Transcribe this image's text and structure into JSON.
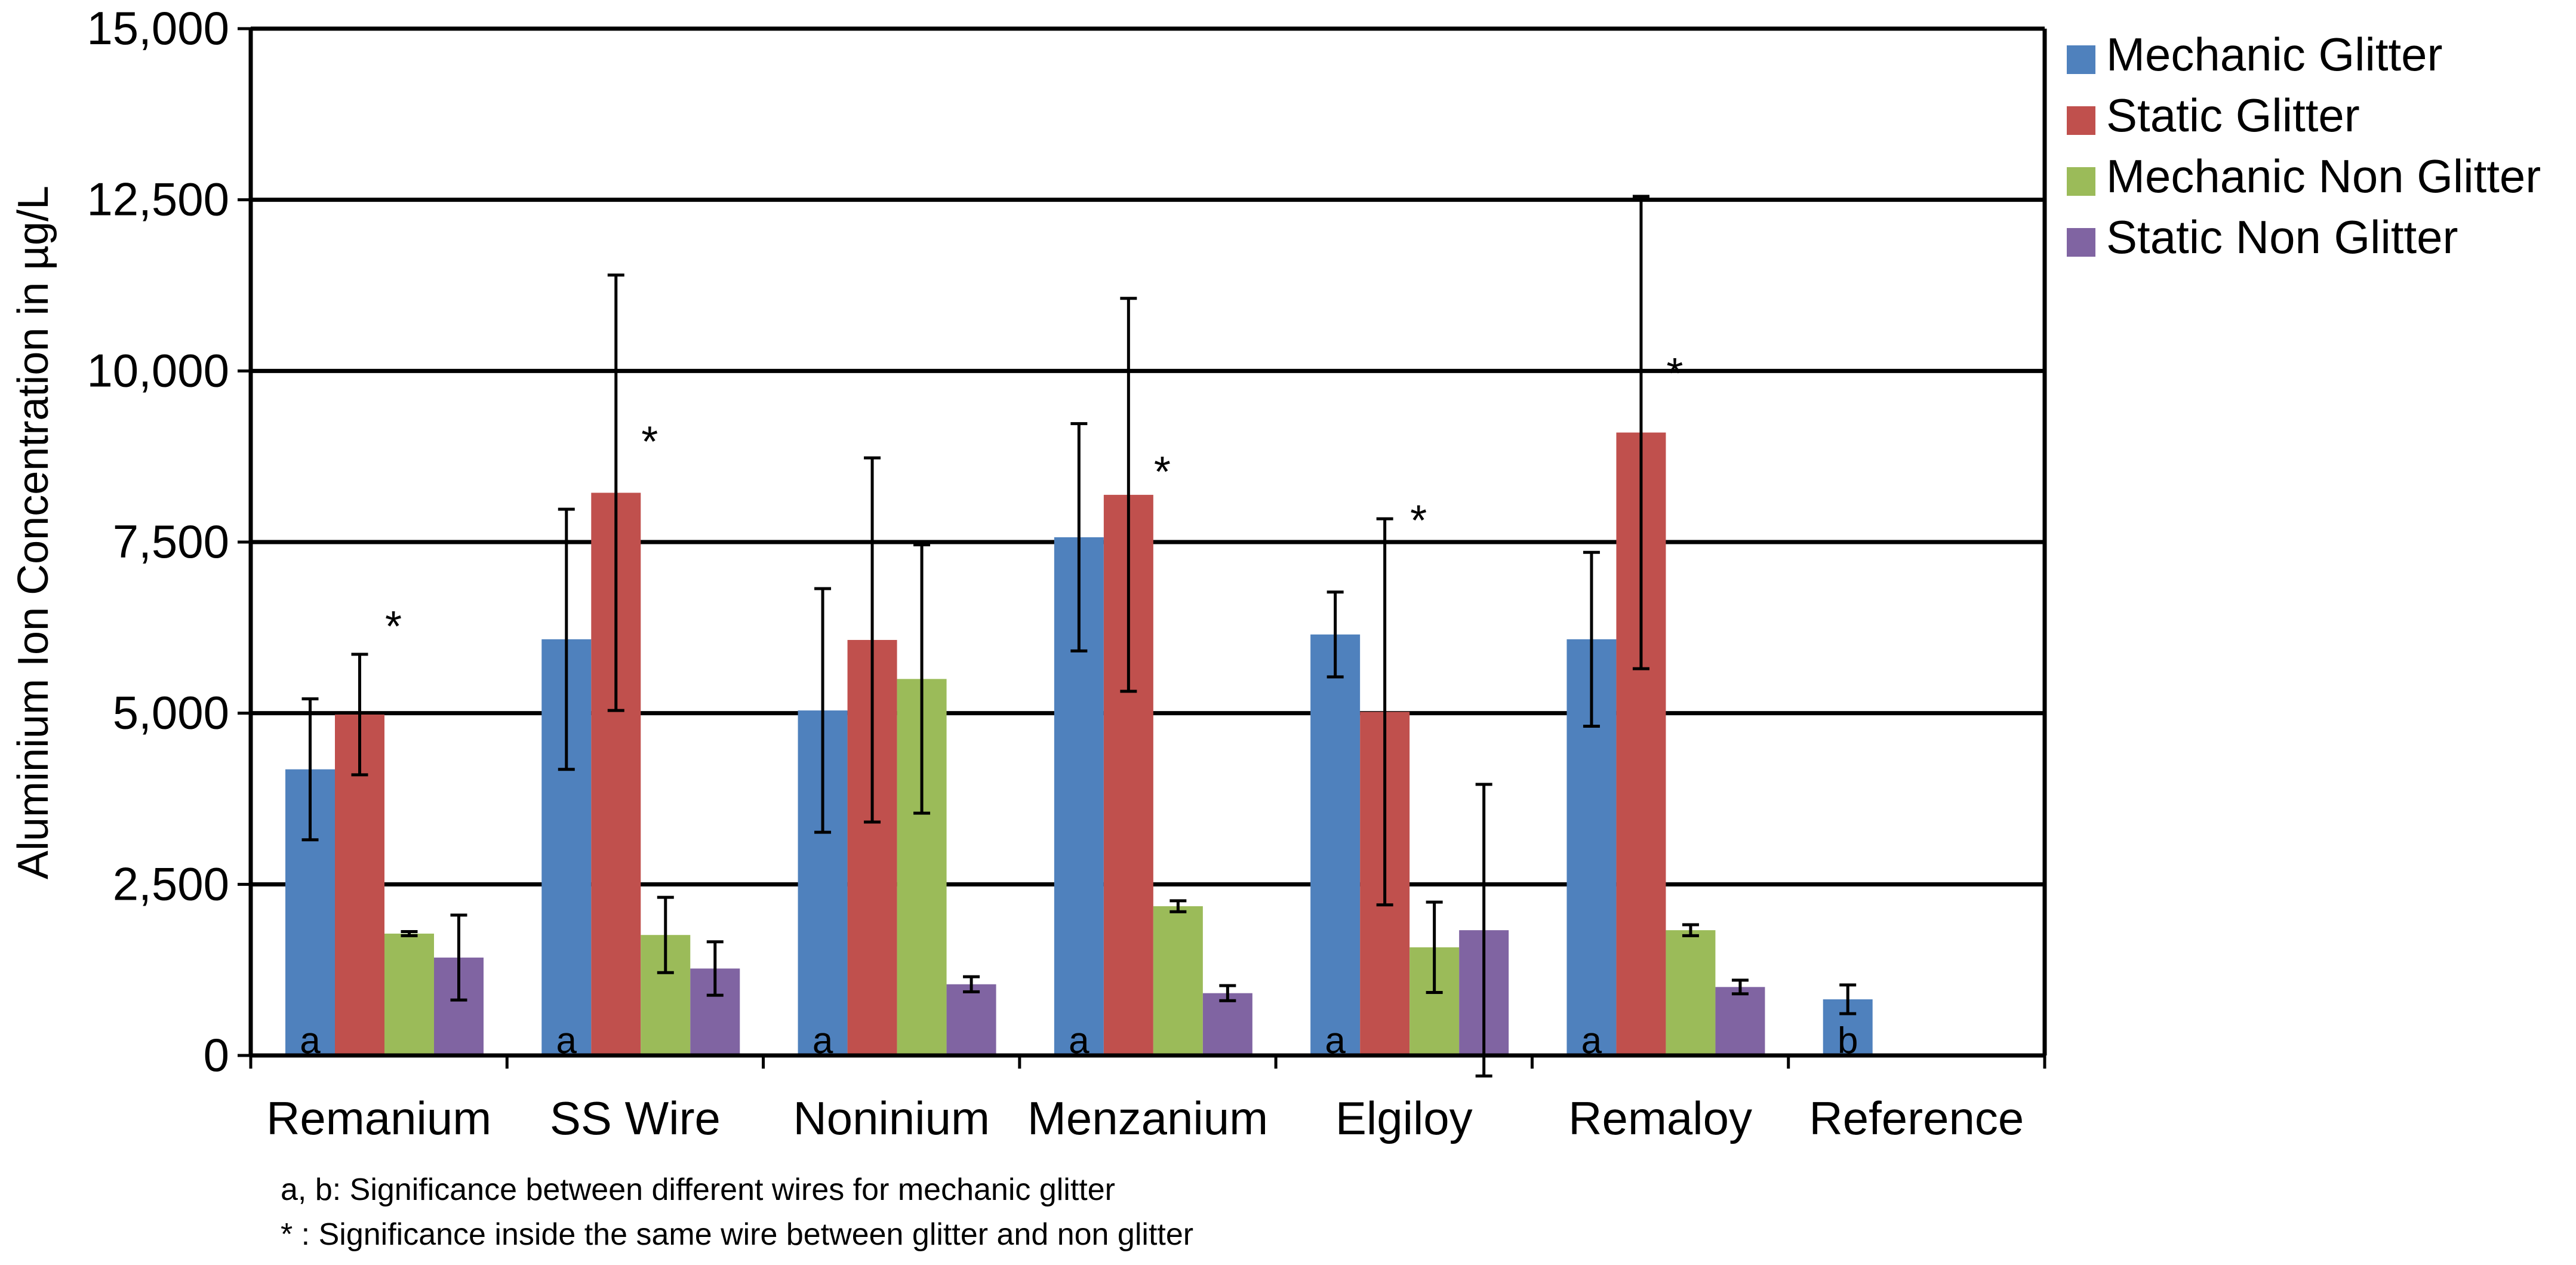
{
  "chart_data": {
    "type": "bar",
    "title": "",
    "xlabel": "",
    "ylabel": "Aluminium Ion Concentration in µg/L",
    "ylim": [
      0,
      15000
    ],
    "ytick_labels": [
      "0",
      "2,500",
      "5,000",
      "7,500",
      "10,000",
      "12,500",
      "15,000"
    ],
    "ytick_values": [
      0,
      2500,
      5000,
      7500,
      10000,
      12500,
      15000
    ],
    "grid": true,
    "legend_position": "top-right",
    "categories": [
      "Remanium",
      "SS Wire",
      "Noninium",
      "Menzanium",
      "Elgiloy",
      "Remaloy",
      "Reference"
    ],
    "series": [
      {
        "name": "Mechanic Glitter",
        "color": "#4F81BD",
        "values": [
          4180,
          6080,
          5040,
          7570,
          6150,
          6080,
          820
        ],
        "errors": [
          1030,
          1900,
          1780,
          1660,
          620,
          1270,
          210
        ]
      },
      {
        "name": "Static Glitter",
        "color": "#C0504D",
        "values": [
          4980,
          8220,
          6070,
          8190,
          5020,
          9100,
          null
        ],
        "errors": [
          880,
          3180,
          2660,
          2870,
          2820,
          3450,
          null
        ]
      },
      {
        "name": "Mechanic Non Glitter",
        "color": "#9BBB59",
        "values": [
          1780,
          1760,
          5500,
          2180,
          1580,
          1830,
          null
        ],
        "errors": [
          30,
          550,
          1960,
          80,
          660,
          80,
          null
        ]
      },
      {
        "name": "Static Non Glitter",
        "color": "#8064A2",
        "values": [
          1430,
          1270,
          1040,
          910,
          1830,
          1000,
          null
        ],
        "errors": [
          620,
          390,
          110,
          110,
          2130,
          100,
          null
        ]
      }
    ],
    "annotations": {
      "significance_letters": [
        "a",
        "a",
        "a",
        "a",
        "a",
        "a",
        "b"
      ],
      "star_label": "*",
      "star_values": [
        6400,
        9100,
        null,
        8660,
        7950,
        10100,
        null
      ]
    }
  },
  "footnotes": [
    "a, b: Significance between different wires for mechanic glitter",
    "*  : Significance inside the same wire between glitter and non  glitter"
  ]
}
